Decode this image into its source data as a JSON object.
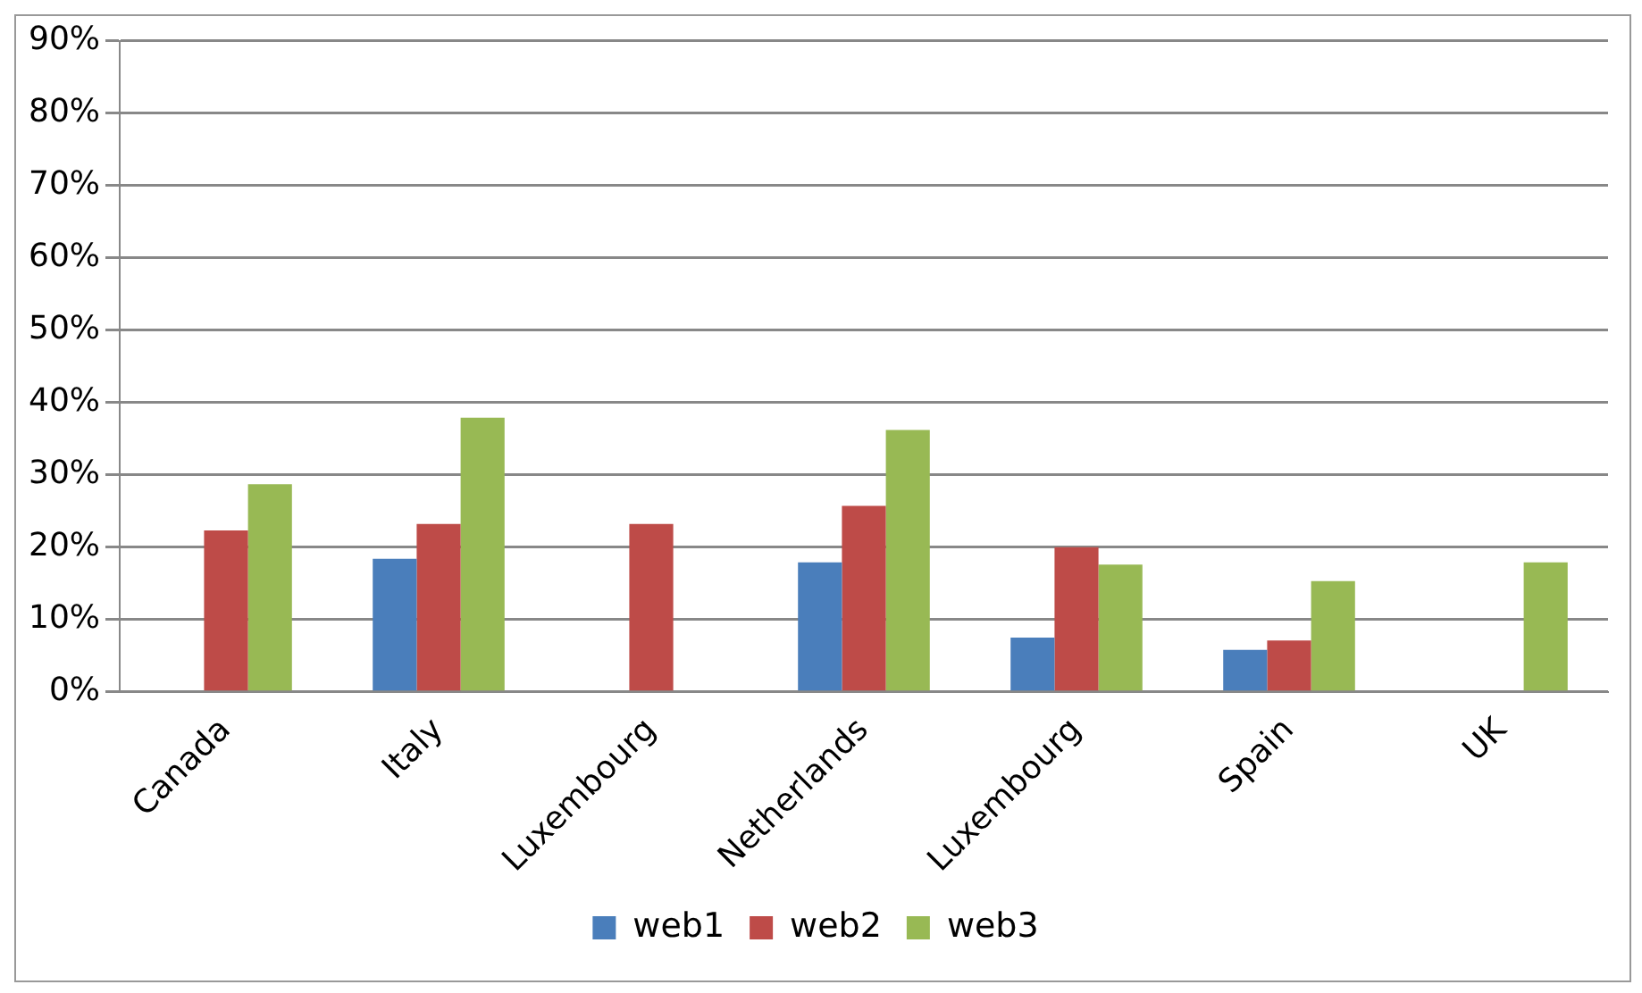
{
  "chart_data": {
    "type": "bar",
    "categories": [
      "Canada",
      "Italy",
      "Luxembourg",
      "Netherlands",
      "Luxembourg",
      "Spain",
      "UK"
    ],
    "series": [
      {
        "name": "web1",
        "color": "#4a7ebb",
        "values": [
          null,
          18.4,
          null,
          17.9,
          7.5,
          5.8,
          null
        ]
      },
      {
        "name": "web2",
        "color": "#be4b48",
        "values": [
          22.3,
          23.2,
          23.2,
          25.7,
          20.0,
          7.1,
          null
        ]
      },
      {
        "name": "web3",
        "color": "#98b954",
        "values": [
          28.7,
          37.9,
          null,
          36.2,
          17.6,
          15.3,
          17.9
        ]
      }
    ],
    "ylim": [
      0,
      90
    ],
    "yticks": [
      {
        "value": 0,
        "label": "0%"
      },
      {
        "value": 10,
        "label": "10%"
      },
      {
        "value": 20,
        "label": "20%"
      },
      {
        "value": 30,
        "label": "30%"
      },
      {
        "value": 40,
        "label": "40%"
      },
      {
        "value": 50,
        "label": "50%"
      },
      {
        "value": 60,
        "label": "60%"
      },
      {
        "value": 70,
        "label": "70%"
      },
      {
        "value": 80,
        "label": "80%"
      },
      {
        "value": 90,
        "label": "90%"
      }
    ],
    "grid": "y",
    "legend": "bottom"
  }
}
